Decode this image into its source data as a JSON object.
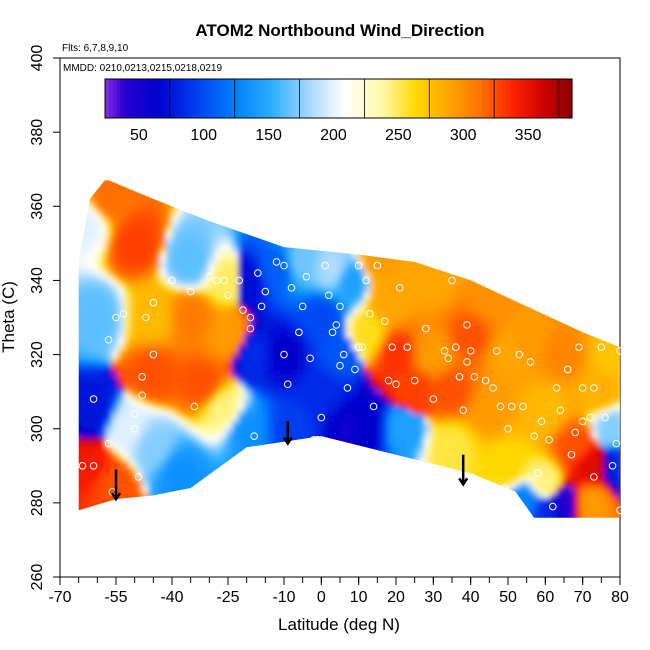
{
  "chart_data": {
    "type": "heatmap",
    "title": "ATOM2 Northbound Wind_Direction",
    "flights_note": "Flts: 6,7,8,9,10",
    "dates_note": "MMDD: 0210,0213,0215,0218,0219",
    "xlabel": "Latitude (deg N)",
    "ylabel": "Theta (C)",
    "xlim": [
      -70,
      80
    ],
    "ylim": [
      260,
      400
    ],
    "x_ticks": [
      -70,
      -55,
      -40,
      -25,
      -10,
      0,
      10,
      20,
      30,
      40,
      50,
      60,
      70,
      80
    ],
    "x_minor_step": 5,
    "y_ticks": [
      260,
      280,
      300,
      320,
      340,
      360,
      380,
      400
    ],
    "colorbar": {
      "range": [
        0,
        360
      ],
      "ticks": [
        50,
        100,
        150,
        200,
        250,
        300,
        350
      ],
      "stops": [
        {
          "v": 0,
          "c": "#8a2be2"
        },
        {
          "v": 15,
          "c": "#2a00d0"
        },
        {
          "v": 40,
          "c": "#0000cd"
        },
        {
          "v": 65,
          "c": "#0033ee"
        },
        {
          "v": 100,
          "c": "#0080ff"
        },
        {
          "v": 130,
          "c": "#30b0ff"
        },
        {
          "v": 160,
          "c": "#b0dcff"
        },
        {
          "v": 185,
          "c": "#ffffff"
        },
        {
          "v": 215,
          "c": "#fff8a0"
        },
        {
          "v": 240,
          "c": "#ffd800"
        },
        {
          "v": 265,
          "c": "#ffa500"
        },
        {
          "v": 290,
          "c": "#ff7000"
        },
        {
          "v": 315,
          "c": "#ff2000"
        },
        {
          "v": 340,
          "c": "#c80000"
        },
        {
          "v": 360,
          "c": "#8b0000"
        }
      ]
    },
    "data_extent": {
      "top": [
        [
          -57,
          367
        ],
        [
          -45,
          362
        ],
        [
          -30,
          356
        ],
        [
          -10,
          349
        ],
        [
          10,
          347
        ],
        [
          25,
          345
        ],
        [
          40,
          340
        ],
        [
          55,
          333
        ],
        [
          70,
          326
        ],
        [
          80,
          322
        ]
      ],
      "bottom": [
        [
          80,
          276
        ],
        [
          57,
          276
        ],
        [
          52,
          283
        ],
        [
          40,
          288
        ],
        [
          20,
          293
        ],
        [
          0,
          298
        ],
        [
          -20,
          295
        ],
        [
          -35,
          284
        ],
        [
          -45,
          282
        ],
        [
          -55,
          281
        ],
        [
          -65,
          278
        ],
        [
          -65,
          345
        ],
        [
          -62,
          362
        ],
        [
          -58,
          367
        ]
      ]
    },
    "field_samples": [
      {
        "lat": -63,
        "theta": 355,
        "dir": 175
      },
      {
        "lat": -57,
        "theta": 362,
        "dir": 290
      },
      {
        "lat": -60,
        "theta": 330,
        "dir": 140
      },
      {
        "lat": -61,
        "theta": 305,
        "dir": 50
      },
      {
        "lat": -62,
        "theta": 290,
        "dir": 320
      },
      {
        "lat": -56,
        "theta": 285,
        "dir": 300
      },
      {
        "lat": -52,
        "theta": 300,
        "dir": 175
      },
      {
        "lat": -45,
        "theta": 330,
        "dir": 255
      },
      {
        "lat": -45,
        "theta": 315,
        "dir": 300
      },
      {
        "lat": -45,
        "theta": 295,
        "dir": 150
      },
      {
        "lat": -50,
        "theta": 350,
        "dir": 305
      },
      {
        "lat": -35,
        "theta": 345,
        "dir": 140
      },
      {
        "lat": -35,
        "theta": 330,
        "dir": 285
      },
      {
        "lat": -32,
        "theta": 312,
        "dir": 300
      },
      {
        "lat": -38,
        "theta": 288,
        "dir": 110
      },
      {
        "lat": -25,
        "theta": 340,
        "dir": 225
      },
      {
        "lat": -25,
        "theta": 325,
        "dir": 270
      },
      {
        "lat": -26,
        "theta": 305,
        "dir": 220
      },
      {
        "lat": -20,
        "theta": 340,
        "dir": 45
      },
      {
        "lat": -18,
        "theta": 320,
        "dir": 60
      },
      {
        "lat": -20,
        "theta": 300,
        "dir": 110
      },
      {
        "lat": -12,
        "theta": 343,
        "dir": 85
      },
      {
        "lat": -10,
        "theta": 320,
        "dir": 40
      },
      {
        "lat": -8,
        "theta": 300,
        "dir": 70
      },
      {
        "lat": -5,
        "theta": 345,
        "dir": 145
      },
      {
        "lat": 0,
        "theta": 330,
        "dir": 75
      },
      {
        "lat": 0,
        "theta": 310,
        "dir": 60
      },
      {
        "lat": 3,
        "theta": 343,
        "dir": 160
      },
      {
        "lat": 5,
        "theta": 320,
        "dir": 80
      },
      {
        "lat": 8,
        "theta": 300,
        "dir": 35
      },
      {
        "lat": 8,
        "theta": 340,
        "dir": 120
      },
      {
        "lat": 12,
        "theta": 325,
        "dir": 235
      },
      {
        "lat": 12,
        "theta": 300,
        "dir": 40
      },
      {
        "lat": 15,
        "theta": 345,
        "dir": 270
      },
      {
        "lat": 20,
        "theta": 320,
        "dir": 310
      },
      {
        "lat": 22,
        "theta": 300,
        "dir": 120
      },
      {
        "lat": 18,
        "theta": 335,
        "dir": 265
      },
      {
        "lat": 25,
        "theta": 310,
        "dir": 305
      },
      {
        "lat": 30,
        "theta": 340,
        "dir": 265
      },
      {
        "lat": 30,
        "theta": 320,
        "dir": 270
      },
      {
        "lat": 35,
        "theta": 310,
        "dir": 300
      },
      {
        "lat": 35,
        "theta": 295,
        "dir": 230
      },
      {
        "lat": 40,
        "theta": 325,
        "dir": 300
      },
      {
        "lat": 45,
        "theta": 335,
        "dir": 275
      },
      {
        "lat": 45,
        "theta": 305,
        "dir": 270
      },
      {
        "lat": 50,
        "theta": 320,
        "dir": 265
      },
      {
        "lat": 50,
        "theta": 290,
        "dir": 240
      },
      {
        "lat": 55,
        "theta": 325,
        "dir": 270
      },
      {
        "lat": 60,
        "theta": 305,
        "dir": 255
      },
      {
        "lat": 60,
        "theta": 285,
        "dir": 220
      },
      {
        "lat": 65,
        "theta": 320,
        "dir": 280
      },
      {
        "lat": 68,
        "theta": 295,
        "dir": 300
      },
      {
        "lat": 72,
        "theta": 290,
        "dir": 330
      },
      {
        "lat": 75,
        "theta": 310,
        "dir": 260
      },
      {
        "lat": 78,
        "theta": 300,
        "dir": 150
      },
      {
        "lat": 80,
        "theta": 290,
        "dir": 60
      },
      {
        "lat": 78,
        "theta": 320,
        "dir": 250
      },
      {
        "lat": 72,
        "theta": 280,
        "dir": 270
      },
      {
        "lat": 65,
        "theta": 280,
        "dir": 20
      },
      {
        "lat": 60,
        "theta": 278,
        "dir": 60
      },
      {
        "lat": 55,
        "theta": 280,
        "dir": 100
      }
    ],
    "observations": [
      [
        -66,
        300
      ],
      [
        -64,
        290
      ],
      [
        -61,
        290
      ],
      [
        -61,
        308
      ],
      [
        -57,
        296
      ],
      [
        -56,
        283
      ],
      [
        -57,
        324
      ],
      [
        -55,
        330
      ],
      [
        -53,
        331
      ],
      [
        -50,
        300
      ],
      [
        -50,
        304
      ],
      [
        -49,
        287
      ],
      [
        -48,
        314
      ],
      [
        -48,
        309
      ],
      [
        -47,
        330
      ],
      [
        -45,
        334
      ],
      [
        -45,
        320
      ],
      [
        -40,
        340
      ],
      [
        -35,
        337
      ],
      [
        -34,
        306
      ],
      [
        -30,
        341
      ],
      [
        -28,
        340
      ],
      [
        -26,
        340
      ],
      [
        -25,
        336
      ],
      [
        -22,
        340
      ],
      [
        -21,
        332
      ],
      [
        -19,
        330
      ],
      [
        -19,
        327
      ],
      [
        -18,
        298
      ],
      [
        -17,
        342
      ],
      [
        -16,
        333
      ],
      [
        -15,
        337
      ],
      [
        -12,
        345
      ],
      [
        -10,
        344
      ],
      [
        -10,
        320
      ],
      [
        -9,
        312
      ],
      [
        -8,
        338
      ],
      [
        -6,
        326
      ],
      [
        -5,
        333
      ],
      [
        -4,
        341
      ],
      [
        -3,
        319
      ],
      [
        -2,
        297
      ],
      [
        -1,
        297
      ],
      [
        0,
        303
      ],
      [
        1,
        344
      ],
      [
        2,
        336
      ],
      [
        3,
        326
      ],
      [
        4,
        328
      ],
      [
        5,
        333
      ],
      [
        5,
        317
      ],
      [
        6,
        320
      ],
      [
        7,
        311
      ],
      [
        9,
        316
      ],
      [
        10,
        344
      ],
      [
        10,
        322
      ],
      [
        11,
        322
      ],
      [
        12,
        340
      ],
      [
        13,
        331
      ],
      [
        14,
        306
      ],
      [
        15,
        344
      ],
      [
        17,
        329
      ],
      [
        18,
        313
      ],
      [
        19,
        322
      ],
      [
        20,
        312
      ],
      [
        21,
        338
      ],
      [
        23,
        322
      ],
      [
        25,
        313
      ],
      [
        26,
        346
      ],
      [
        28,
        327
      ],
      [
        30,
        308
      ],
      [
        31,
        344
      ],
      [
        33,
        321
      ],
      [
        34,
        319
      ],
      [
        35,
        340
      ],
      [
        36,
        322
      ],
      [
        37,
        314
      ],
      [
        38,
        305
      ],
      [
        39,
        328
      ],
      [
        39,
        318
      ],
      [
        40,
        321
      ],
      [
        41,
        314
      ],
      [
        44,
        313
      ],
      [
        46,
        311
      ],
      [
        47,
        321
      ],
      [
        48,
        306
      ],
      [
        49,
        284
      ],
      [
        50,
        300
      ],
      [
        51,
        306
      ],
      [
        53,
        320
      ],
      [
        54,
        306
      ],
      [
        56,
        318
      ],
      [
        57,
        298
      ],
      [
        58,
        288
      ],
      [
        59,
        302
      ],
      [
        61,
        297
      ],
      [
        63,
        311
      ],
      [
        64,
        305
      ],
      [
        66,
        316
      ],
      [
        67,
        293
      ],
      [
        68,
        299
      ],
      [
        69,
        322
      ],
      [
        70,
        311
      ],
      [
        70,
        302
      ],
      [
        72,
        303
      ],
      [
        73,
        287
      ],
      [
        73,
        311
      ],
      [
        75,
        322
      ],
      [
        76,
        303
      ],
      [
        78,
        290
      ],
      [
        79,
        296
      ],
      [
        80,
        321
      ],
      [
        80,
        278
      ],
      [
        62,
        279
      ]
    ],
    "arrows": [
      {
        "lat": -55,
        "theta_top": 289,
        "theta_bottom": 281
      },
      {
        "lat": -9,
        "theta_top": 302,
        "theta_bottom": 296
      },
      {
        "lat": 38,
        "theta_top": 293,
        "theta_bottom": 285
      }
    ]
  }
}
